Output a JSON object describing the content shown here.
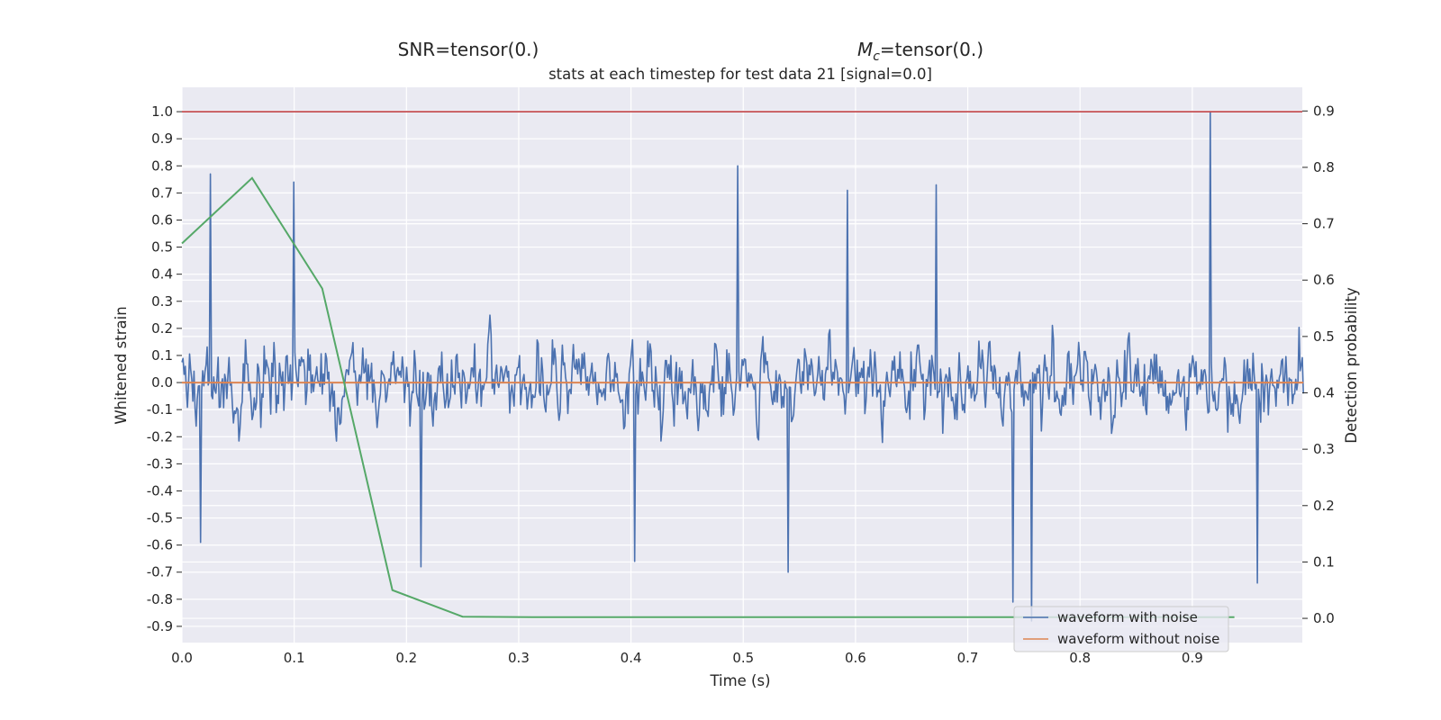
{
  "chart_data": {
    "type": "line",
    "header_left": "SNR=tensor(0.)",
    "header_right_symbol": "M",
    "header_right_subscript": "c",
    "header_right_rest": "=tensor(0.)",
    "subtitle": "stats at each timestep for test data 21 [signal=0.0]",
    "xlabel": "Time (s)",
    "ylabel_left": "Whitened strain",
    "ylabel_right": "Detection probability",
    "xlim": [
      0.0,
      0.998
    ],
    "ylim_left": [
      -0.96,
      1.09
    ],
    "ylim_right": [
      -0.043,
      0.942
    ],
    "x_ticks": [
      "0.0",
      "0.1",
      "0.2",
      "0.3",
      "0.4",
      "0.5",
      "0.6",
      "0.7",
      "0.8",
      "0.9"
    ],
    "y_ticks_left": [
      "-0.9",
      "-0.8",
      "-0.7",
      "-0.6",
      "-0.5",
      "-0.4",
      "-0.3",
      "-0.2",
      "-0.1",
      "0.0",
      "0.1",
      "0.2",
      "0.3",
      "0.4",
      "0.5",
      "0.6",
      "0.7",
      "0.8",
      "0.9",
      "1.0"
    ],
    "y_ticks_right": [
      "0.0",
      "0.1",
      "0.2",
      "0.3",
      "0.4",
      "0.5",
      "0.6",
      "0.7",
      "0.8",
      "0.9"
    ],
    "grid": true,
    "legend_position": "lower-right",
    "series": [
      {
        "name": "waveform with noise",
        "color": "#4c72b0",
        "axis": "left",
        "note_shape": "whitened gaussian noise, 1024 samples spanning 0.0–0.999 s, values between about -0.88 and 1.0",
        "x_start": 0.0,
        "x_end": 0.999,
        "n_samples": 1024,
        "peaks": [
          {
            "x": 0.025,
            "y": 0.77
          },
          {
            "x": 0.1,
            "y": 0.74
          },
          {
            "x": 0.495,
            "y": 0.8
          },
          {
            "x": 0.593,
            "y": 0.71
          },
          {
            "x": 0.672,
            "y": 0.73
          },
          {
            "x": 0.916,
            "y": 1.0
          },
          {
            "x": 0.017,
            "y": -0.59
          },
          {
            "x": 0.213,
            "y": -0.68
          },
          {
            "x": 0.403,
            "y": -0.66
          },
          {
            "x": 0.54,
            "y": -0.7
          },
          {
            "x": 0.74,
            "y": -0.81
          },
          {
            "x": 0.757,
            "y": -0.88
          },
          {
            "x": 0.958,
            "y": -0.74
          }
        ]
      },
      {
        "name": "waveform without noise",
        "color": "#dd8452",
        "axis": "left",
        "x": [
          0.0,
          0.999
        ],
        "y": [
          0.0,
          0.0
        ]
      },
      {
        "name": "",
        "color": "#55a868",
        "axis": "right",
        "x": [
          0.0,
          0.0625,
          0.125,
          0.1875,
          0.25,
          0.3125,
          0.375,
          0.4375,
          0.5,
          0.5625,
          0.625,
          0.6875,
          0.75,
          0.8125,
          0.875,
          0.9375
        ],
        "y": [
          0.665,
          0.781,
          0.585,
          0.05,
          0.003,
          0.002,
          0.002,
          0.002,
          0.002,
          0.002,
          0.002,
          0.002,
          0.002,
          0.002,
          0.002,
          0.002
        ]
      },
      {
        "name": "",
        "color": "#c44e52",
        "axis": "left",
        "x": [
          0.0,
          0.998
        ],
        "y": [
          1.0,
          1.0
        ]
      }
    ]
  }
}
